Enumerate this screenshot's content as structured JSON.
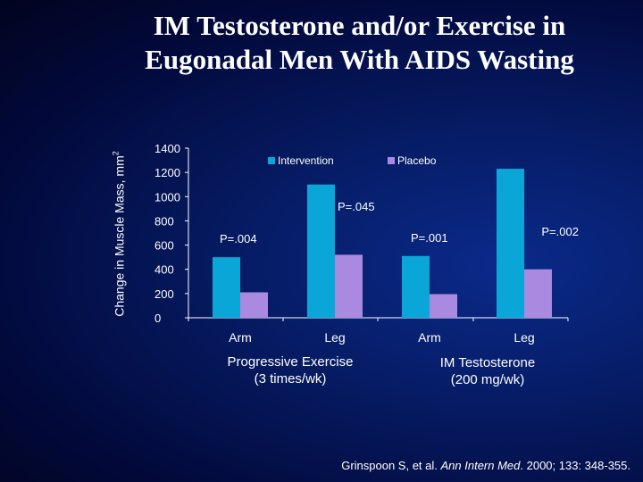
{
  "slide": {
    "title_line1": "IM Testosterone and/or Exercise in",
    "title_line2": "Eugonadal Men With AIDS Wasting",
    "ylabel_text": "Change in Muscle Mass, mm",
    "ylabel_sup": "2"
  },
  "chart_data": {
    "type": "bar",
    "title": "IM Testosterone and/or Exercise in Eugonadal Men With AIDS Wasting",
    "ylabel": "Change in Muscle Mass, mm2",
    "ylim": [
      0,
      1400
    ],
    "yticks": [
      0,
      200,
      400,
      600,
      800,
      1000,
      1200,
      1400
    ],
    "categories": [
      "Arm",
      "Leg",
      "Arm",
      "Leg"
    ],
    "groups": [
      {
        "label_line1": "Progressive Exercise",
        "label_line2": "(3 times/wk)"
      },
      {
        "label_line1": "IM Testosterone",
        "label_line2": "(200 mg/wk)"
      }
    ],
    "series": [
      {
        "name": "Intervention",
        "color": "#0aa6d8",
        "values": [
          500,
          1100,
          510,
          1230
        ]
      },
      {
        "name": "Placebo",
        "color": "#a98ae0",
        "values": [
          210,
          520,
          195,
          400
        ]
      }
    ],
    "annotations": [
      "P=.004",
      "P=.045",
      "P=.001",
      "P=.002"
    ],
    "legend_position": "top"
  },
  "citation": {
    "before": "Grinspoon S, et al. ",
    "journal": "Ann Intern Med",
    "after": ". 2000; 133: 348-355."
  }
}
